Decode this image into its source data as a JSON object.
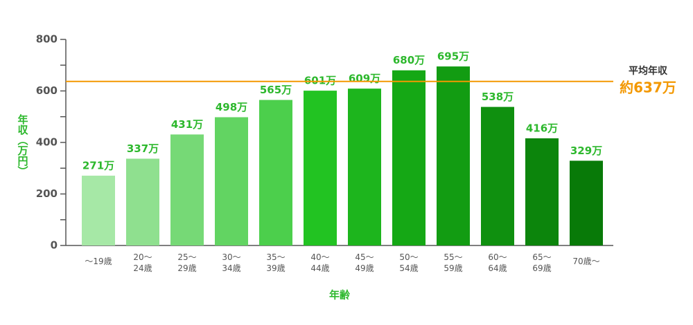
{
  "chart_data": {
    "type": "bar",
    "y_label": "年収（万円）",
    "x_label": "年齢",
    "categories": [
      [
        "～19歳"
      ],
      [
        "20～",
        "24歳"
      ],
      [
        "25～",
        "29歳"
      ],
      [
        "30～",
        "34歳"
      ],
      [
        "35～",
        "39歳"
      ],
      [
        "40～",
        "44歳"
      ],
      [
        "45～",
        "49歳"
      ],
      [
        "50～",
        "54歳"
      ],
      [
        "55～",
        "59歳"
      ],
      [
        "60～",
        "64歳"
      ],
      [
        "65～",
        "69歳"
      ],
      [
        "70歳～"
      ]
    ],
    "values": [
      271,
      337,
      431,
      498,
      565,
      601,
      609,
      680,
      695,
      538,
      416,
      329
    ],
    "value_labels": [
      "271万",
      "337万",
      "431万",
      "498万",
      "565万",
      "601万",
      "609万",
      "680万",
      "695万",
      "538万",
      "416万",
      "329万"
    ],
    "colors": [
      "#a6e8a6",
      "#8fe08f",
      "#76d976",
      "#62d462",
      "#4ccf4c",
      "#22c322",
      "#1db51d",
      "#15a815",
      "#129c12",
      "#0f900f",
      "#0c850c",
      "#087a08"
    ],
    "ylim": [
      0,
      800
    ],
    "yticks": [
      0,
      200,
      400,
      600,
      800
    ],
    "minor_yticks": [
      100,
      300,
      500,
      700
    ],
    "reference_line": {
      "value": 637,
      "label": "平均年収",
      "value_label": "約637万",
      "color": "#f39800"
    }
  }
}
